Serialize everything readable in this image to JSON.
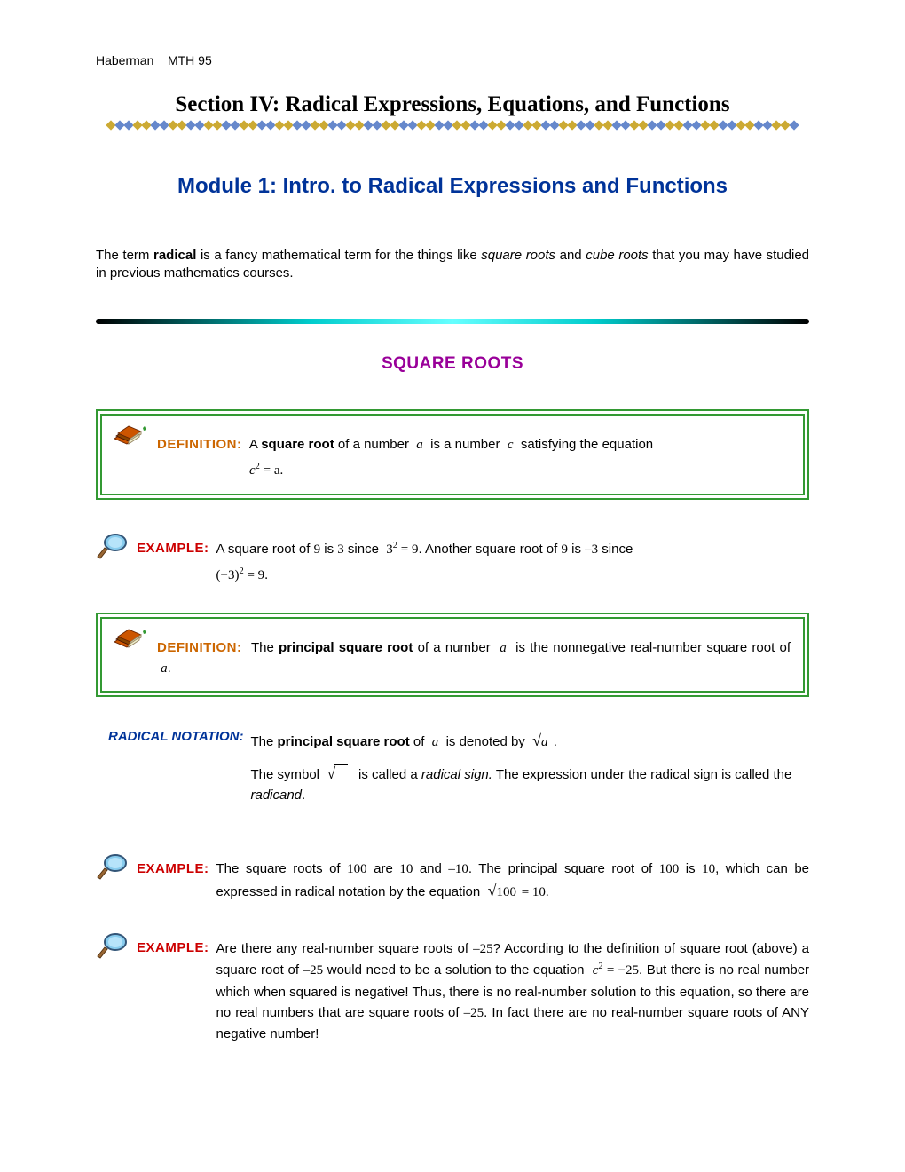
{
  "header": {
    "author": "Haberman",
    "course": "MTH 95"
  },
  "section_title": "Section IV:  Radical Expressions, Equations, and Functions",
  "module_title": "Module 1:  Intro. to Radical Expressions and Functions",
  "intro": {
    "t1": "The term ",
    "bold1": "radical",
    "t2": " is a fancy mathematical term for the things like ",
    "it1": "square roots",
    "t3": " and ",
    "it2": "cube roots",
    "t4": " that you may have studied in previous mathematics courses."
  },
  "section_heading": "SQUARE ROOTS",
  "labels": {
    "definition": "DEFINITION:",
    "example": "EXAMPLE:",
    "notation": "RADICAL NOTATION:"
  },
  "def1": {
    "t1": "A ",
    "bold": "square root",
    "t2": " of a number ",
    "va": "a",
    "t3": " is a number ",
    "vc": "c",
    "t4": " satisfying the equation",
    "eq": "c",
    "eq2": " = a",
    "period": "."
  },
  "ex1": {
    "t1": "A square root of ",
    "n9a": "9",
    "t2": " is ",
    "n3": "3",
    "t3": " since ",
    "eq1a": "3",
    "eq1b": " = 9",
    "t4": ". Another square root of ",
    "n9b": "9",
    "t5": " is ",
    "nm3": "–3",
    "t6": " since",
    "eq2a": "(−3)",
    "eq2b": " = 9",
    "period": "."
  },
  "def2": {
    "t1": "The ",
    "bold": "principal square root",
    "t2": " of a number ",
    "va": "a",
    "t3": " is the nonnegative real-number square root of ",
    "va2": "a",
    "period": "."
  },
  "notation": {
    "l1a": "The ",
    "l1bold": "principal square root",
    "l1b": " of ",
    "va": "a",
    "l1c": " is denoted by ",
    "l1d": ".",
    "l2a": "The symbol ",
    "l2b": " is called a ",
    "l2it": "radical sign.",
    "l2c": " The expression under the radical sign is called the ",
    "l2it2": "radicand",
    "l2d": "."
  },
  "ex2": {
    "t1": "The square roots of ",
    "n100a": "100",
    "t2": " are ",
    "n10a": "10",
    "t3": " and ",
    "nm10": "–10",
    "t4": ". The principal square root of ",
    "n100b": "100",
    "t5": " is ",
    "n10b": "10",
    "t6": ", which can be expressed in radical notation by the equation ",
    "eq100": "100",
    "eqres": " = 10",
    "period": "."
  },
  "ex3": {
    "t1": "Are there any real-number square roots of ",
    "nm25a": "–25",
    "t2": "? According to the definition of square root (above) a square root of ",
    "nm25b": "–25",
    "t3": " would need to be a solution to the equation ",
    "eqc": "c",
    "eqr": " = −25",
    "t4": ". But there is no real number which when squared is negative! Thus, there is no real-number solution to this equation, so there are no real numbers that are square roots of ",
    "nm25c": "–25",
    "t5": ". In fact there are no real-number square roots of ANY negative number!"
  },
  "colors": {
    "diamond_palette": [
      "#ccaa33",
      "#6688cc",
      "#6688cc",
      "#ccaa33",
      "#ccaa33",
      "#6688cc",
      "#6688cc",
      "#ccaa33"
    ]
  }
}
